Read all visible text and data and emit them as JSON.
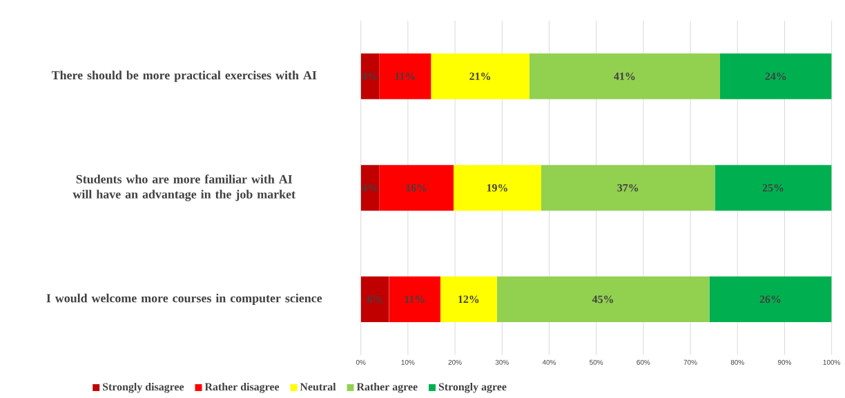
{
  "chart_data": {
    "type": "bar",
    "orientation": "horizontal",
    "stacked": true,
    "categories": [
      "There should be more practical exercises with AI",
      "Students who are more familiar with AI will have an advantage in the job market",
      "I would welcome more courses in computer science"
    ],
    "series": [
      {
        "name": "Strongly disagree",
        "color": "#c00000",
        "values": [
          3.9,
          3.9,
          6.0
        ],
        "value_labels": [
          "4%",
          "4%",
          "6%"
        ]
      },
      {
        "name": "Rather disagree",
        "color": "#ff0000",
        "values": [
          11.0,
          15.8,
          10.9
        ],
        "value_labels": [
          "11%",
          "16%",
          "11%"
        ]
      },
      {
        "name": "Neutral",
        "color": "#ffff00",
        "values": [
          20.9,
          18.6,
          12.0
        ],
        "value_labels": [
          "21%",
          "19%",
          "12%"
        ]
      },
      {
        "name": "Rather agree",
        "color": "#92d050",
        "values": [
          40.5,
          36.9,
          45.1
        ],
        "value_labels": [
          "41%",
          "37%",
          "45%"
        ]
      },
      {
        "name": "Strongly agree",
        "color": "#00b050",
        "values": [
          23.7,
          24.8,
          26.0
        ],
        "value_labels": [
          "24%",
          "25%",
          "26%"
        ]
      }
    ],
    "xlim": [
      0,
      100
    ],
    "xticks": [
      {
        "value": 0,
        "label": "0%"
      },
      {
        "value": 10,
        "label": "10%"
      },
      {
        "value": 20,
        "label": "20%"
      },
      {
        "value": 30,
        "label": "30%"
      },
      {
        "value": 40,
        "label": "40%"
      },
      {
        "value": 50,
        "label": "50%"
      },
      {
        "value": 60,
        "label": "60%"
      },
      {
        "value": 70,
        "label": "70%"
      },
      {
        "value": 80,
        "label": "80%"
      },
      {
        "value": 90,
        "label": "90%"
      },
      {
        "value": 100,
        "label": "100%"
      }
    ],
    "grid": "x",
    "legend": "bottom"
  }
}
